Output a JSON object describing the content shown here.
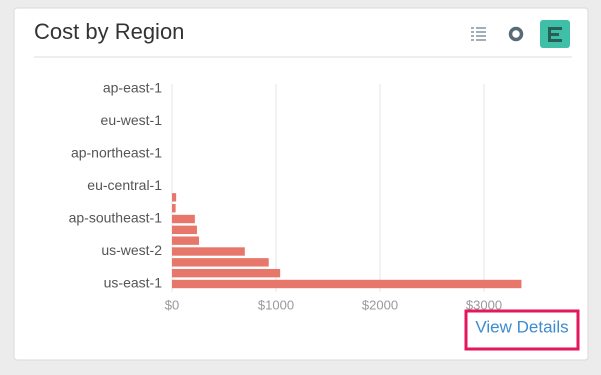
{
  "card": {
    "title": "Cost by Region",
    "link": "View Details"
  },
  "chart_data": {
    "type": "hbar",
    "categories": [
      "ap-east-1",
      null,
      null,
      "eu-west-1",
      null,
      null,
      "ap-northeast-1",
      null,
      null,
      "eu-central-1",
      null,
      null,
      "ap-southeast-1",
      null,
      null,
      "us-west-2",
      null,
      null,
      "us-east-1"
    ],
    "values": [
      0,
      0,
      0,
      0,
      0,
      0,
      0,
      0,
      0,
      0,
      40,
      35,
      220,
      240,
      260,
      700,
      930,
      1040,
      3360
    ],
    "color": "#e8776b",
    "xlim": [
      0,
      3500
    ],
    "xticks": [
      {
        "value": 0,
        "label": "$0"
      },
      {
        "value": 1000,
        "label": "$1000"
      },
      {
        "value": 2000,
        "label": "$2000"
      },
      {
        "value": 3000,
        "label": "$3000"
      }
    ],
    "grid": true
  }
}
